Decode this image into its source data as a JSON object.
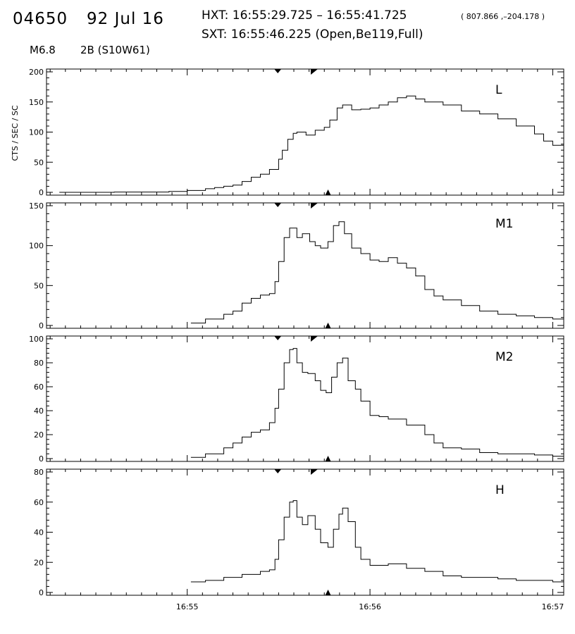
{
  "header": {
    "event_id": "04650",
    "date": "92 Jul 16",
    "hxt": "HXT: 16:55:29.725 – 16:55:41.725",
    "coords": "( 807.866 ,–204.178 )",
    "sxt": "SXT: 16:55:46.225 (Open,Be119,Full)",
    "flare_class": "M6.8",
    "optical": "2B (S10W61)"
  },
  "chart_data": {
    "type": "line",
    "ylabel": "CTS / SEC / SC",
    "x_ticks": [
      "16:55",
      "16:56",
      "16:57"
    ],
    "x_tick_minutes": [
      0,
      1,
      2
    ],
    "x_range_minutes": [
      -0.77,
      2.06
    ],
    "hxt_window_minutes": [
      0.4954,
      0.6954
    ],
    "sxt_time_minutes": [
      0.7704
    ],
    "panels": [
      {
        "name": "L",
        "ylim": [
          0,
          200
        ],
        "yticks": [
          0,
          50,
          100,
          150,
          200
        ],
        "points": [
          [
            -0.7,
            0
          ],
          [
            -0.4,
            0.5
          ],
          [
            -0.1,
            1.5
          ],
          [
            0,
            3
          ],
          [
            0.1,
            6
          ],
          [
            0.15,
            8
          ],
          [
            0.2,
            10
          ],
          [
            0.25,
            12
          ],
          [
            0.3,
            18
          ],
          [
            0.35,
            25
          ],
          [
            0.4,
            30
          ],
          [
            0.45,
            38
          ],
          [
            0.5,
            55
          ],
          [
            0.52,
            70
          ],
          [
            0.55,
            88
          ],
          [
            0.58,
            98
          ],
          [
            0.6,
            100
          ],
          [
            0.65,
            95
          ],
          [
            0.7,
            103
          ],
          [
            0.75,
            108
          ],
          [
            0.78,
            120
          ],
          [
            0.82,
            140
          ],
          [
            0.85,
            145
          ],
          [
            0.9,
            137
          ],
          [
            0.95,
            138
          ],
          [
            1.0,
            140
          ],
          [
            1.05,
            145
          ],
          [
            1.1,
            150
          ],
          [
            1.15,
            157
          ],
          [
            1.2,
            160
          ],
          [
            1.25,
            155
          ],
          [
            1.3,
            150
          ],
          [
            1.4,
            145
          ],
          [
            1.5,
            135
          ],
          [
            1.6,
            130
          ],
          [
            1.7,
            122
          ],
          [
            1.8,
            110
          ],
          [
            1.9,
            97
          ],
          [
            1.95,
            85
          ],
          [
            2.0,
            78
          ],
          [
            2.06,
            80
          ]
        ]
      },
      {
        "name": "M1",
        "ylim": [
          0,
          150
        ],
        "yticks": [
          0,
          50,
          100,
          150
        ],
        "points": [
          [
            0.02,
            3
          ],
          [
            0.1,
            8
          ],
          [
            0.2,
            14
          ],
          [
            0.25,
            18
          ],
          [
            0.3,
            28
          ],
          [
            0.35,
            34
          ],
          [
            0.4,
            38
          ],
          [
            0.45,
            40
          ],
          [
            0.48,
            55
          ],
          [
            0.5,
            80
          ],
          [
            0.53,
            110
          ],
          [
            0.56,
            122
          ],
          [
            0.6,
            110
          ],
          [
            0.63,
            115
          ],
          [
            0.67,
            105
          ],
          [
            0.7,
            100
          ],
          [
            0.73,
            97
          ],
          [
            0.77,
            105
          ],
          [
            0.8,
            125
          ],
          [
            0.83,
            130
          ],
          [
            0.86,
            115
          ],
          [
            0.9,
            97
          ],
          [
            0.95,
            90
          ],
          [
            1.0,
            82
          ],
          [
            1.05,
            80
          ],
          [
            1.1,
            85
          ],
          [
            1.15,
            78
          ],
          [
            1.2,
            72
          ],
          [
            1.25,
            62
          ],
          [
            1.3,
            45
          ],
          [
            1.35,
            37
          ],
          [
            1.4,
            32
          ],
          [
            1.5,
            25
          ],
          [
            1.6,
            18
          ],
          [
            1.7,
            14
          ],
          [
            1.8,
            12
          ],
          [
            1.9,
            10
          ],
          [
            2.0,
            8
          ],
          [
            2.06,
            7
          ]
        ]
      },
      {
        "name": "M2",
        "ylim": [
          0,
          100
        ],
        "yticks": [
          0,
          20,
          40,
          60,
          80,
          100
        ],
        "points": [
          [
            0.02,
            1
          ],
          [
            0.1,
            4
          ],
          [
            0.2,
            9
          ],
          [
            0.25,
            13
          ],
          [
            0.3,
            18
          ],
          [
            0.35,
            22
          ],
          [
            0.4,
            24
          ],
          [
            0.45,
            30
          ],
          [
            0.48,
            42
          ],
          [
            0.5,
            58
          ],
          [
            0.53,
            80
          ],
          [
            0.56,
            91
          ],
          [
            0.58,
            92
          ],
          [
            0.6,
            80
          ],
          [
            0.63,
            72
          ],
          [
            0.66,
            71
          ],
          [
            0.7,
            65
          ],
          [
            0.73,
            57
          ],
          [
            0.76,
            55
          ],
          [
            0.79,
            68
          ],
          [
            0.82,
            80
          ],
          [
            0.85,
            84
          ],
          [
            0.88,
            65
          ],
          [
            0.92,
            58
          ],
          [
            0.95,
            48
          ],
          [
            1.0,
            36
          ],
          [
            1.05,
            35
          ],
          [
            1.1,
            33
          ],
          [
            1.2,
            28
          ],
          [
            1.3,
            20
          ],
          [
            1.35,
            13
          ],
          [
            1.4,
            9
          ],
          [
            1.5,
            8
          ],
          [
            1.6,
            5
          ],
          [
            1.7,
            4
          ],
          [
            1.8,
            4
          ],
          [
            1.9,
            3
          ],
          [
            2.0,
            2
          ],
          [
            2.06,
            2
          ]
        ]
      },
      {
        "name": "H",
        "ylim": [
          0,
          80
        ],
        "yticks": [
          0,
          20,
          40,
          60,
          80
        ],
        "points": [
          [
            0.02,
            7
          ],
          [
            0.1,
            8
          ],
          [
            0.2,
            10
          ],
          [
            0.3,
            12
          ],
          [
            0.4,
            14
          ],
          [
            0.45,
            15
          ],
          [
            0.48,
            22
          ],
          [
            0.5,
            35
          ],
          [
            0.53,
            50
          ],
          [
            0.56,
            60
          ],
          [
            0.58,
            61
          ],
          [
            0.6,
            50
          ],
          [
            0.63,
            45
          ],
          [
            0.66,
            51
          ],
          [
            0.7,
            42
          ],
          [
            0.73,
            33
          ],
          [
            0.77,
            30
          ],
          [
            0.8,
            42
          ],
          [
            0.83,
            52
          ],
          [
            0.85,
            56
          ],
          [
            0.88,
            47
          ],
          [
            0.92,
            30
          ],
          [
            0.95,
            22
          ],
          [
            1.0,
            18
          ],
          [
            1.1,
            19
          ],
          [
            1.2,
            16
          ],
          [
            1.3,
            14
          ],
          [
            1.4,
            11
          ],
          [
            1.5,
            10
          ],
          [
            1.6,
            10
          ],
          [
            1.7,
            9
          ],
          [
            1.8,
            8
          ],
          [
            1.9,
            8
          ],
          [
            2.0,
            7
          ],
          [
            2.06,
            8
          ]
        ]
      }
    ]
  }
}
